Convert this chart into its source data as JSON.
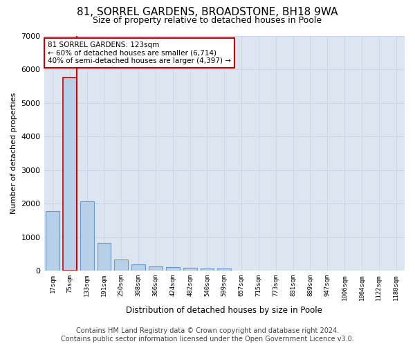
{
  "title1": "81, SORREL GARDENS, BROADSTONE, BH18 9WA",
  "title2": "Size of property relative to detached houses in Poole",
  "xlabel": "Distribution of detached houses by size in Poole",
  "ylabel": "Number of detached properties",
  "categories": [
    "17sqm",
    "75sqm",
    "133sqm",
    "191sqm",
    "250sqm",
    "308sqm",
    "366sqm",
    "424sqm",
    "482sqm",
    "540sqm",
    "599sqm",
    "657sqm",
    "715sqm",
    "773sqm",
    "831sqm",
    "889sqm",
    "947sqm",
    "1006sqm",
    "1064sqm",
    "1122sqm",
    "1180sqm"
  ],
  "bar_values": [
    1780,
    5750,
    2060,
    830,
    340,
    190,
    120,
    110,
    90,
    70,
    70,
    0,
    0,
    0,
    0,
    0,
    0,
    0,
    0,
    0,
    0
  ],
  "bar_color": "#b8cfe8",
  "bar_edge_color": "#6699cc",
  "highlight_bar_index": 1,
  "highlight_bar_edge_color": "#cc0000",
  "vline_color": "#cc0000",
  "annotation_text": "81 SORREL GARDENS: 123sqm\n← 60% of detached houses are smaller (6,714)\n40% of semi-detached houses are larger (4,397) →",
  "annotation_box_color": "#cc0000",
  "ylim": [
    0,
    7000
  ],
  "yticks": [
    0,
    1000,
    2000,
    3000,
    4000,
    5000,
    6000,
    7000
  ],
  "grid_color": "#c8d4e8",
  "background_color": "#dde6f0",
  "footer_line1": "Contains HM Land Registry data © Crown copyright and database right 2024.",
  "footer_line2": "Contains public sector information licensed under the Open Government Licence v3.0.",
  "title1_fontsize": 11,
  "title2_fontsize": 9,
  "footer_fontsize": 7
}
